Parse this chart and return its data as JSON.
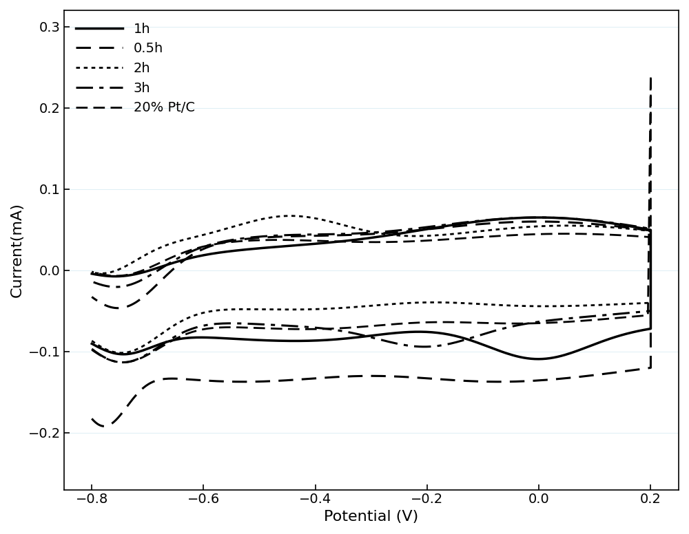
{
  "title": "",
  "xlabel": "Potential (V)",
  "ylabel": "Current(mA)",
  "xlim": [
    -0.85,
    0.25
  ],
  "ylim": [
    -0.27,
    0.32
  ],
  "xticks": [
    -0.8,
    -0.6,
    -0.4,
    -0.2,
    0.0,
    0.2
  ],
  "yticks": [
    -0.2,
    -0.1,
    0.0,
    0.1,
    0.2,
    0.3
  ],
  "background_color": "#f0f4f8",
  "plot_bg": "#ffffff",
  "legend_labels": [
    "1h",
    "0.5h",
    "2h",
    "3h",
    "20% Pt/C"
  ],
  "line_styles": [
    "-",
    "--",
    ":",
    "-.",
    "--"
  ],
  "line_widths": [
    2.0,
    2.0,
    2.0,
    2.0,
    2.0
  ],
  "line_colors": [
    "#000000",
    "#000000",
    "#000000",
    "#000000",
    "#000000"
  ],
  "font_size": 16,
  "legend_font_size": 14
}
